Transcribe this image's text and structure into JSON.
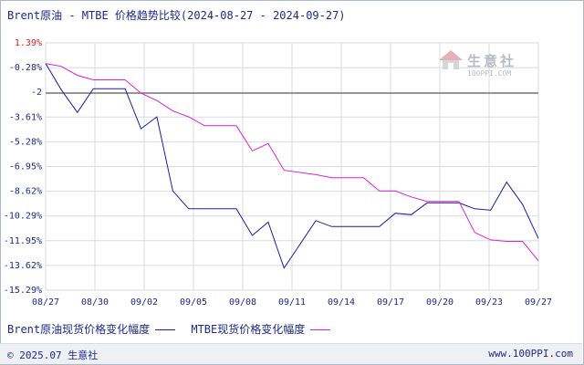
{
  "title": "Brent原油 - MTBE 价格趋势比较(2024-08-27 - 2024-09-27)",
  "watermark": {
    "name": "生意社",
    "url": "100PPI.COM"
  },
  "footer": {
    "copyright": "© 2025.07 生意社",
    "site": "www.100PPI.com"
  },
  "chart_data": {
    "type": "line",
    "title": "Brent原油 - MTBE 价格趋势比较(2024-08-27 - 2024-09-27)",
    "xlabel": "",
    "ylabel": "",
    "x_ticks": [
      "08/27",
      "08/30",
      "09/02",
      "09/05",
      "09/08",
      "09/11",
      "09/14",
      "09/17",
      "09/20",
      "09/23",
      "09/27"
    ],
    "y_ticks": [
      "1.39%",
      "-0.28%",
      "-2",
      "-3.61%",
      "-5.28%",
      "-6.95%",
      "-8.62%",
      "-10.29%",
      "-11.95%",
      "-13.62%",
      "-15.29%"
    ],
    "y_tick_colors": [
      "#e02020",
      "#1b2a8a",
      "#1b2a8a",
      "#1b2a8a",
      "#1b2a8a",
      "#1b2a8a",
      "#1b2a8a",
      "#1b2a8a",
      "#1b2a8a",
      "#1b2a8a",
      "#1b2a8a"
    ],
    "ylim": [
      -15.29,
      1.39
    ],
    "reference_line": -2,
    "grid": true,
    "legend_position": "bottom-left",
    "series": [
      {
        "name": "Brent原油现货价格变化幅度",
        "color": "#1c1ca8",
        "points": [
          [
            0,
            0
          ],
          [
            1,
            -1.8
          ],
          [
            2,
            -3.3
          ],
          [
            3,
            -1.7
          ],
          [
            4,
            -1.7
          ],
          [
            5,
            -1.7
          ],
          [
            6,
            -4.4
          ],
          [
            7,
            -3.6
          ],
          [
            8,
            -8.6
          ],
          [
            9,
            -9.8
          ],
          [
            10,
            -9.8
          ],
          [
            11,
            -9.8
          ],
          [
            12,
            -9.8
          ],
          [
            13,
            -11.6
          ],
          [
            14,
            -10.7
          ],
          [
            15,
            -13.8
          ],
          [
            17,
            -10.6
          ],
          [
            18,
            -11.0
          ],
          [
            20,
            -11.0
          ],
          [
            21,
            -11.0
          ],
          [
            22,
            -10.1
          ],
          [
            23,
            -10.2
          ],
          [
            24,
            -9.4
          ],
          [
            26,
            -9.4
          ],
          [
            27,
            -9.8
          ],
          [
            28,
            -9.9
          ],
          [
            29,
            -8.0
          ],
          [
            30,
            -9.5
          ],
          [
            31,
            -11.8
          ]
        ]
      },
      {
        "name": "MTBE现货价格变化幅度",
        "color": "#e020d0",
        "points": [
          [
            0,
            0
          ],
          [
            1,
            -0.2
          ],
          [
            2,
            -0.8
          ],
          [
            3,
            -1.1
          ],
          [
            4,
            -1.1
          ],
          [
            5,
            -1.1
          ],
          [
            6,
            -2.0
          ],
          [
            7,
            -2.5
          ],
          [
            8,
            -3.2
          ],
          [
            9,
            -3.6
          ],
          [
            10,
            -4.2
          ],
          [
            11,
            -4.2
          ],
          [
            12,
            -4.2
          ],
          [
            13,
            -5.9
          ],
          [
            14,
            -5.4
          ],
          [
            15,
            -7.2
          ],
          [
            17,
            -7.5
          ],
          [
            18,
            -7.7
          ],
          [
            20,
            -7.7
          ],
          [
            21,
            -8.6
          ],
          [
            22,
            -8.6
          ],
          [
            23,
            -9.0
          ],
          [
            24,
            -9.3
          ],
          [
            26,
            -9.3
          ],
          [
            27,
            -11.4
          ],
          [
            28,
            -11.9
          ],
          [
            29,
            -12.0
          ],
          [
            30,
            -12.0
          ],
          [
            31,
            -13.3
          ]
        ]
      }
    ]
  }
}
